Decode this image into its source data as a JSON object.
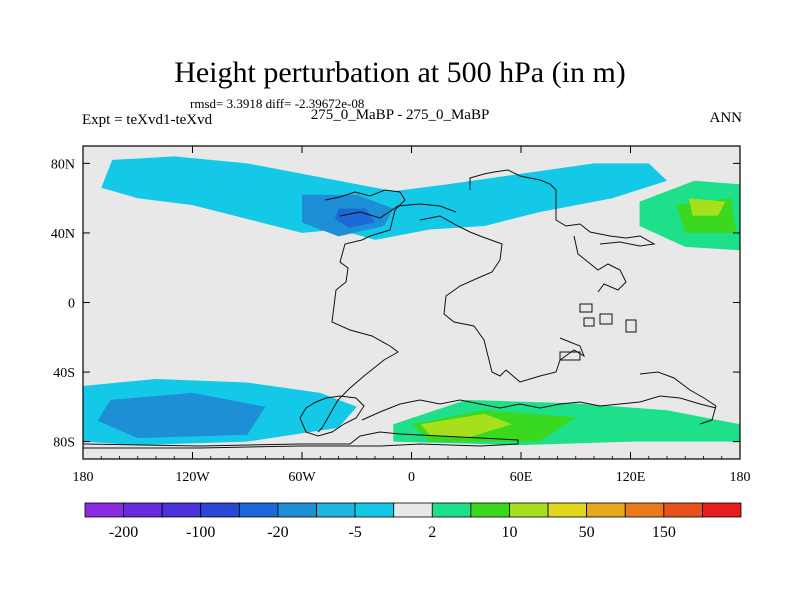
{
  "chart_data": {
    "type": "filled-contour-map",
    "title": "Height perturbation at 500 hPa (in m)",
    "stats": "rmsd= 3.3918 diff= -2.39672e-08",
    "left_label": "Expt = teXvd1-teXvd",
    "center_label": "275_0_MaBP - 275_0_MaBP",
    "right_label": "ANN",
    "x_ticks": [
      "180",
      "120W",
      "60W",
      "0",
      "60E",
      "120E",
      "180"
    ],
    "x_tick_values": [
      -180,
      -120,
      -60,
      0,
      60,
      120,
      180
    ],
    "y_ticks": [
      "80N",
      "40N",
      "0",
      "40S",
      "80S"
    ],
    "y_tick_values": [
      80,
      40,
      0,
      -40,
      -80
    ],
    "xlim": [
      -180,
      180
    ],
    "ylim": [
      -90,
      90
    ],
    "colorbar_labels": [
      "-200",
      "-100",
      "-20",
      "-5",
      "2",
      "10",
      "50",
      "150"
    ],
    "colorbar_colors": [
      "#8a2be2",
      "#6a2be0",
      "#4a33d8",
      "#2a48d6",
      "#1c68d8",
      "#1e8ed6",
      "#1ab6e0",
      "#14c9e8",
      "#e8e8e8",
      "#1ee08a",
      "#3ad81e",
      "#a6e01c",
      "#e0d81c",
      "#e8a81c",
      "#e87a1c",
      "#e8501c",
      "#e81c1c"
    ],
    "contour_regions": [
      {
        "level": "-5..2",
        "color": "#14c9e8",
        "lon_lat": [
          [
            -164,
            82
          ],
          [
            -130,
            84
          ],
          [
            -90,
            80
          ],
          [
            -50,
            72
          ],
          [
            -10,
            64
          ],
          [
            20,
            68
          ],
          [
            60,
            74
          ],
          [
            100,
            80
          ],
          [
            130,
            80
          ],
          [
            140,
            70
          ],
          [
            110,
            60
          ],
          [
            70,
            52
          ],
          [
            40,
            44
          ],
          [
            10,
            42
          ],
          [
            -20,
            36
          ],
          [
            -40,
            42
          ],
          [
            -60,
            40
          ],
          [
            -90,
            48
          ],
          [
            -120,
            56
          ],
          [
            -150,
            60
          ],
          [
            -170,
            66
          ]
        ]
      },
      {
        "level": "-20..-5",
        "color": "#1e8ed6",
        "lon_lat": [
          [
            -60,
            62
          ],
          [
            -30,
            62
          ],
          [
            -10,
            54
          ],
          [
            -15,
            44
          ],
          [
            -40,
            38
          ],
          [
            -60,
            46
          ]
        ]
      },
      {
        "level": "-100..-20",
        "color": "#1c68d8",
        "lon_lat": [
          [
            -40,
            54
          ],
          [
            -25,
            54
          ],
          [
            -20,
            46
          ],
          [
            -34,
            43
          ],
          [
            -42,
            48
          ]
        ]
      },
      {
        "level": "-5..2",
        "color": "#14c9e8",
        "lon_lat": [
          [
            -180,
            -48
          ],
          [
            -140,
            -44
          ],
          [
            -90,
            -46
          ],
          [
            -50,
            -52
          ],
          [
            -30,
            -60
          ],
          [
            -40,
            -72
          ],
          [
            -90,
            -80
          ],
          [
            -150,
            -82
          ],
          [
            -180,
            -80
          ]
        ]
      },
      {
        "level": "-20..-5",
        "color": "#1e8ed6",
        "lon_lat": [
          [
            -165,
            -56
          ],
          [
            -120,
            -52
          ],
          [
            -80,
            -60
          ],
          [
            -90,
            -76
          ],
          [
            -150,
            -78
          ],
          [
            -172,
            -68
          ]
        ]
      },
      {
        "level": "2..10",
        "color": "#1ee08a",
        "lon_lat": [
          [
            -10,
            -70
          ],
          [
            30,
            -56
          ],
          [
            90,
            -58
          ],
          [
            140,
            -62
          ],
          [
            180,
            -70
          ],
          [
            180,
            -80
          ],
          [
            120,
            -80
          ],
          [
            60,
            -82
          ],
          [
            -10,
            -80
          ]
        ]
      },
      {
        "level": "10..50",
        "color": "#3ad81e",
        "lon_lat": [
          [
            0,
            -70
          ],
          [
            40,
            -62
          ],
          [
            90,
            -66
          ],
          [
            70,
            -80
          ],
          [
            10,
            -80
          ]
        ]
      },
      {
        "level": "50..150",
        "color": "#a6e01c",
        "lon_lat": [
          [
            5,
            -70
          ],
          [
            40,
            -64
          ],
          [
            55,
            -70
          ],
          [
            30,
            -78
          ],
          [
            10,
            -76
          ]
        ]
      },
      {
        "level": "2..10",
        "color": "#1ee08a",
        "lon_lat": [
          [
            125,
            58
          ],
          [
            155,
            70
          ],
          [
            180,
            68
          ],
          [
            180,
            30
          ],
          [
            150,
            32
          ],
          [
            125,
            44
          ]
        ]
      },
      {
        "level": "10..50",
        "color": "#3ad81e",
        "lon_lat": [
          [
            145,
            56
          ],
          [
            175,
            60
          ],
          [
            178,
            40
          ],
          [
            150,
            40
          ]
        ]
      },
      {
        "level": "50..150",
        "color": "#a6e01c",
        "lon_lat": [
          [
            152,
            60
          ],
          [
            172,
            58
          ],
          [
            168,
            50
          ],
          [
            154,
            50
          ]
        ]
      }
    ]
  }
}
